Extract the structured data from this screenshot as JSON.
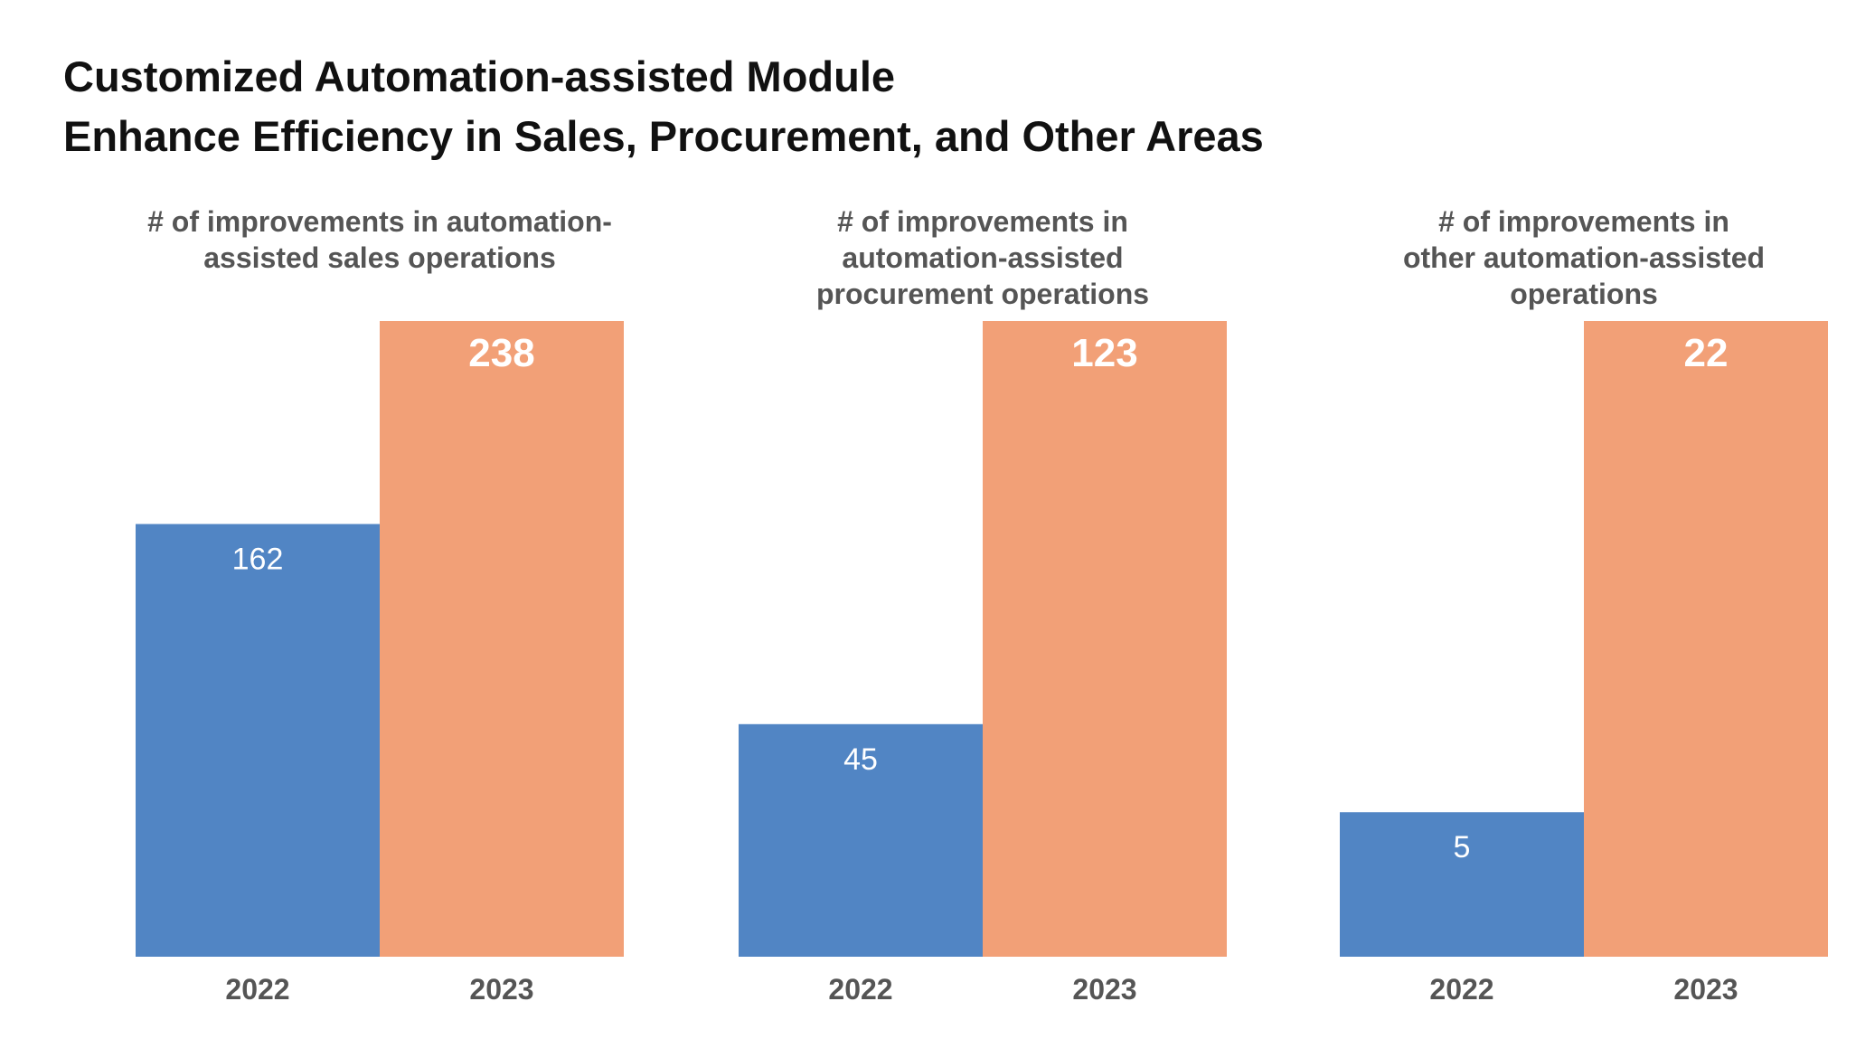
{
  "title_lines": [
    "Customized Automation-assisted Module",
    "Enhance Efficiency in Sales, Procurement, and Other Areas"
  ],
  "colors": {
    "2022": "#5185c4",
    "2023": "#f2a077",
    "label_2022": "#ffffff",
    "label_2023": "#ffffff"
  },
  "chart_data": [
    {
      "type": "bar",
      "title_lines": [
        "# of improvements in automation-",
        "assisted sales operations"
      ],
      "categories": [
        "2022",
        "2023"
      ],
      "values": [
        162,
        238
      ],
      "ylim": [
        0,
        238
      ],
      "grid": false
    },
    {
      "type": "bar",
      "title_lines": [
        "# of improvements in",
        "automation-assisted",
        "procurement operations"
      ],
      "categories": [
        "2022",
        "2023"
      ],
      "values": [
        45,
        123
      ],
      "ylim": [
        0,
        123
      ],
      "grid": false
    },
    {
      "type": "bar",
      "title_lines": [
        "# of improvements in",
        "other automation-assisted",
        "operations"
      ],
      "categories": [
        "2022",
        "2023"
      ],
      "values": [
        5,
        22
      ],
      "ylim": [
        0,
        22
      ],
      "grid": false
    }
  ]
}
